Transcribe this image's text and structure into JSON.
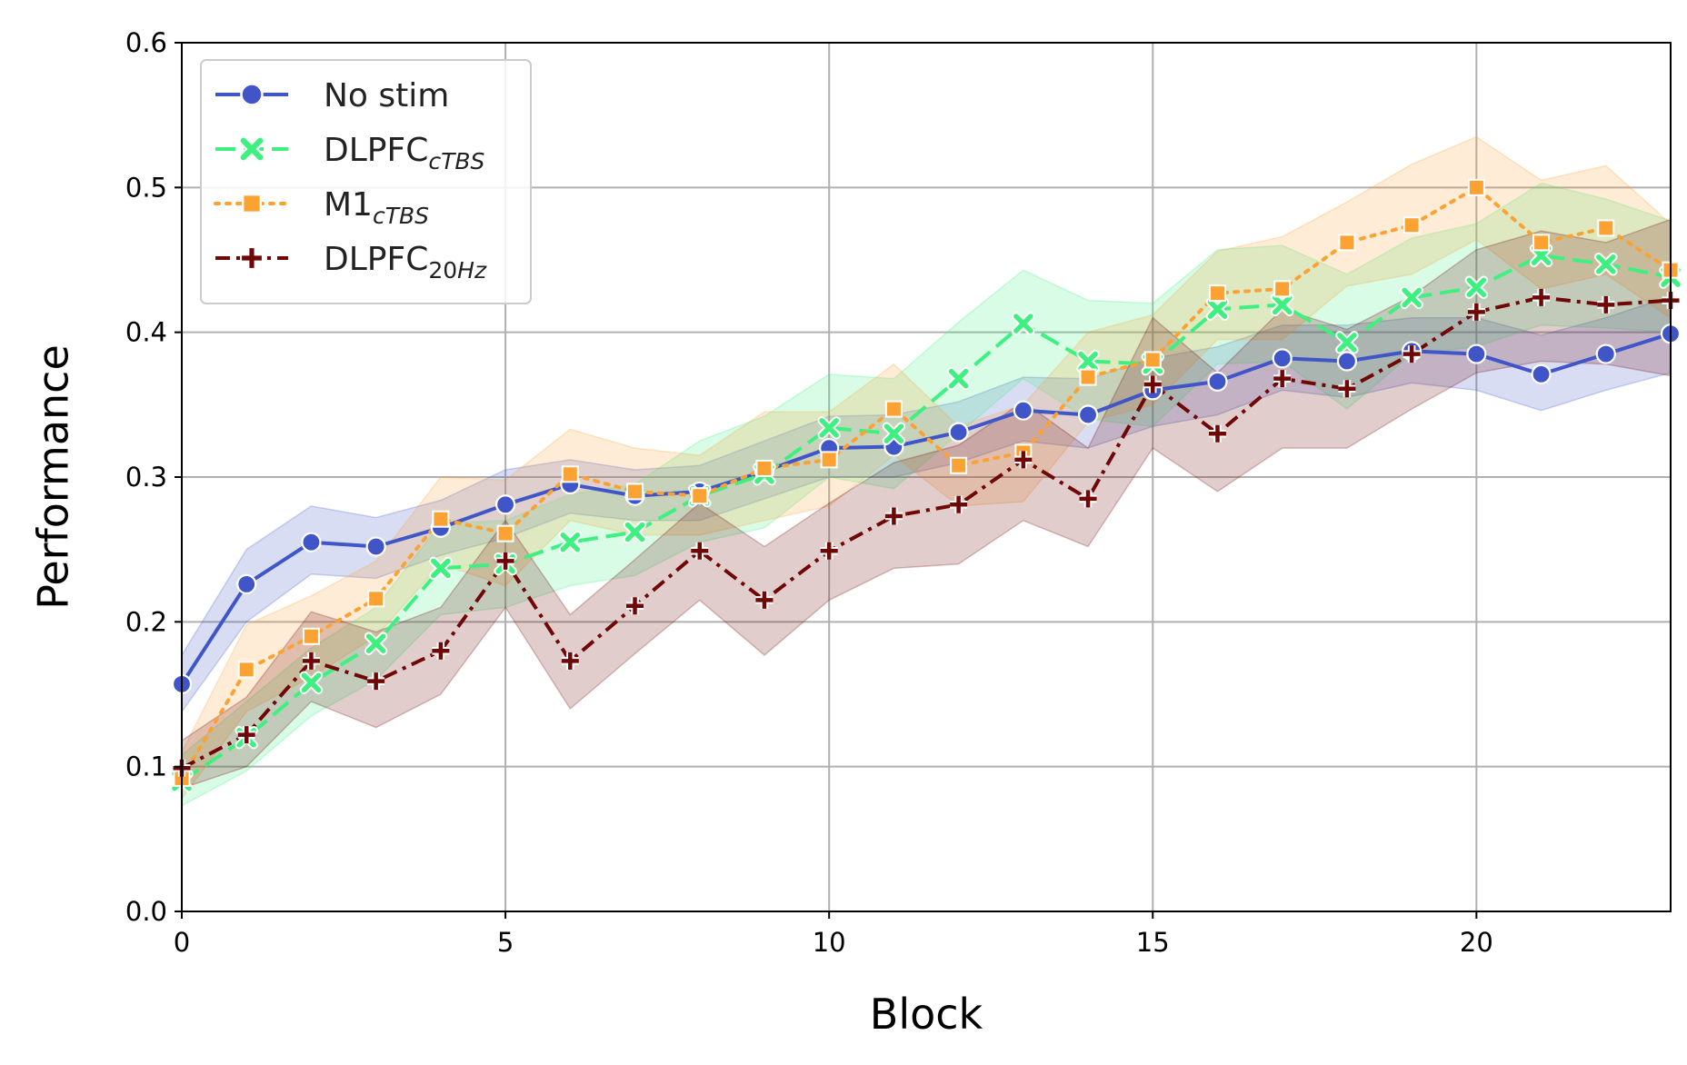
{
  "chart_data": {
    "type": "line",
    "title": "",
    "xlabel": "Block",
    "ylabel": "Performance",
    "xlim": [
      0,
      23
    ],
    "ylim": [
      0,
      0.6
    ],
    "x_ticks": [
      0,
      5,
      10,
      15,
      20
    ],
    "x_tick_labels": [
      "0",
      "5",
      "10",
      "15",
      "20"
    ],
    "y_ticks": [
      0.0,
      0.1,
      0.2,
      0.3,
      0.4,
      0.5,
      0.6
    ],
    "y_tick_labels": [
      "0.0",
      "0.1",
      "0.2",
      "0.3",
      "0.4",
      "0.5",
      "0.6"
    ],
    "grid": true,
    "legend_position": "top-left",
    "x": [
      0,
      1,
      2,
      3,
      4,
      5,
      6,
      7,
      8,
      9,
      10,
      11,
      12,
      13,
      14,
      15,
      16,
      17,
      18,
      19,
      20,
      21,
      22,
      23
    ],
    "series": [
      {
        "name": "No stim",
        "legend_main": "No stim",
        "legend_sub": "",
        "legend_sub_italic": "",
        "color": "#4056c8",
        "line_style": "solid",
        "marker": "circle",
        "values": [
          0.157,
          0.226,
          0.255,
          0.252,
          0.265,
          0.281,
          0.295,
          0.287,
          0.29,
          0.304,
          0.32,
          0.321,
          0.331,
          0.346,
          0.343,
          0.36,
          0.366,
          0.382,
          0.38,
          0.387,
          0.385,
          0.371,
          0.385,
          0.399
        ],
        "ci_lower": [
          0.138,
          0.2,
          0.233,
          0.23,
          0.246,
          0.258,
          0.275,
          0.27,
          0.27,
          0.285,
          0.3,
          0.3,
          0.31,
          0.325,
          0.32,
          0.335,
          0.343,
          0.36,
          0.355,
          0.365,
          0.36,
          0.346,
          0.36,
          0.372
        ],
        "ci_upper": [
          0.177,
          0.25,
          0.28,
          0.272,
          0.284,
          0.305,
          0.312,
          0.305,
          0.308,
          0.325,
          0.342,
          0.343,
          0.352,
          0.369,
          0.368,
          0.382,
          0.39,
          0.405,
          0.405,
          0.41,
          0.41,
          0.398,
          0.41,
          0.425
        ]
      },
      {
        "name": "DLPFCcTBS",
        "legend_main": "DLPFC",
        "legend_sub": "",
        "legend_sub_italic": "cTBS",
        "color": "#3ef080",
        "line_style": "dashed",
        "marker": "x",
        "values": [
          0.09,
          0.12,
          0.158,
          0.185,
          0.237,
          0.24,
          0.255,
          0.262,
          0.287,
          0.302,
          0.334,
          0.33,
          0.368,
          0.406,
          0.38,
          0.378,
          0.416,
          0.419,
          0.393,
          0.424,
          0.431,
          0.453,
          0.447,
          0.438
        ],
        "ci_lower": [
          0.073,
          0.097,
          0.135,
          0.16,
          0.205,
          0.21,
          0.225,
          0.232,
          0.255,
          0.265,
          0.3,
          0.292,
          0.33,
          0.368,
          0.34,
          0.335,
          0.378,
          0.38,
          0.347,
          0.385,
          0.39,
          0.405,
          0.403,
          0.4
        ],
        "ci_upper": [
          0.108,
          0.145,
          0.182,
          0.21,
          0.268,
          0.27,
          0.288,
          0.295,
          0.325,
          0.342,
          0.371,
          0.368,
          0.407,
          0.443,
          0.422,
          0.42,
          0.457,
          0.46,
          0.44,
          0.465,
          0.475,
          0.503,
          0.492,
          0.477
        ]
      },
      {
        "name": "M1cTBS",
        "legend_main": "M1",
        "legend_sub": "",
        "legend_sub_italic": "cTBS",
        "color": "#fca233",
        "line_style": "dotted",
        "marker": "square",
        "values": [
          0.092,
          0.167,
          0.19,
          0.216,
          0.271,
          0.261,
          0.302,
          0.29,
          0.287,
          0.306,
          0.312,
          0.347,
          0.308,
          0.317,
          0.369,
          0.381,
          0.427,
          0.43,
          0.462,
          0.474,
          0.5,
          0.462,
          0.472,
          0.443
        ],
        "ci_lower": [
          0.078,
          0.138,
          0.162,
          0.19,
          0.24,
          0.225,
          0.27,
          0.26,
          0.26,
          0.27,
          0.28,
          0.315,
          0.28,
          0.283,
          0.338,
          0.35,
          0.395,
          0.395,
          0.432,
          0.44,
          0.464,
          0.43,
          0.44,
          0.41
        ],
        "ci_upper": [
          0.11,
          0.198,
          0.218,
          0.242,
          0.3,
          0.298,
          0.333,
          0.32,
          0.315,
          0.345,
          0.345,
          0.378,
          0.335,
          0.35,
          0.4,
          0.412,
          0.456,
          0.466,
          0.49,
          0.516,
          0.535,
          0.505,
          0.515,
          0.475
        ]
      },
      {
        "name": "DLPFC20Hz",
        "legend_main": "DLPFC",
        "legend_sub": "20",
        "legend_sub_italic": "Hz",
        "color": "#700707",
        "line_style": "dashdot",
        "marker": "plus",
        "values": [
          0.099,
          0.122,
          0.173,
          0.159,
          0.18,
          0.242,
          0.173,
          0.211,
          0.249,
          0.215,
          0.249,
          0.273,
          0.281,
          0.312,
          0.285,
          0.364,
          0.33,
          0.368,
          0.361,
          0.385,
          0.414,
          0.424,
          0.419,
          0.422
        ],
        "ci_lower": [
          0.085,
          0.1,
          0.145,
          0.127,
          0.15,
          0.21,
          0.14,
          0.178,
          0.215,
          0.177,
          0.215,
          0.237,
          0.24,
          0.27,
          0.252,
          0.32,
          0.29,
          0.32,
          0.32,
          0.347,
          0.372,
          0.38,
          0.378,
          0.37
        ],
        "ci_upper": [
          0.118,
          0.148,
          0.207,
          0.193,
          0.21,
          0.27,
          0.205,
          0.243,
          0.282,
          0.252,
          0.282,
          0.31,
          0.322,
          0.352,
          0.32,
          0.41,
          0.372,
          0.416,
          0.402,
          0.425,
          0.457,
          0.47,
          0.462,
          0.478
        ]
      }
    ]
  }
}
